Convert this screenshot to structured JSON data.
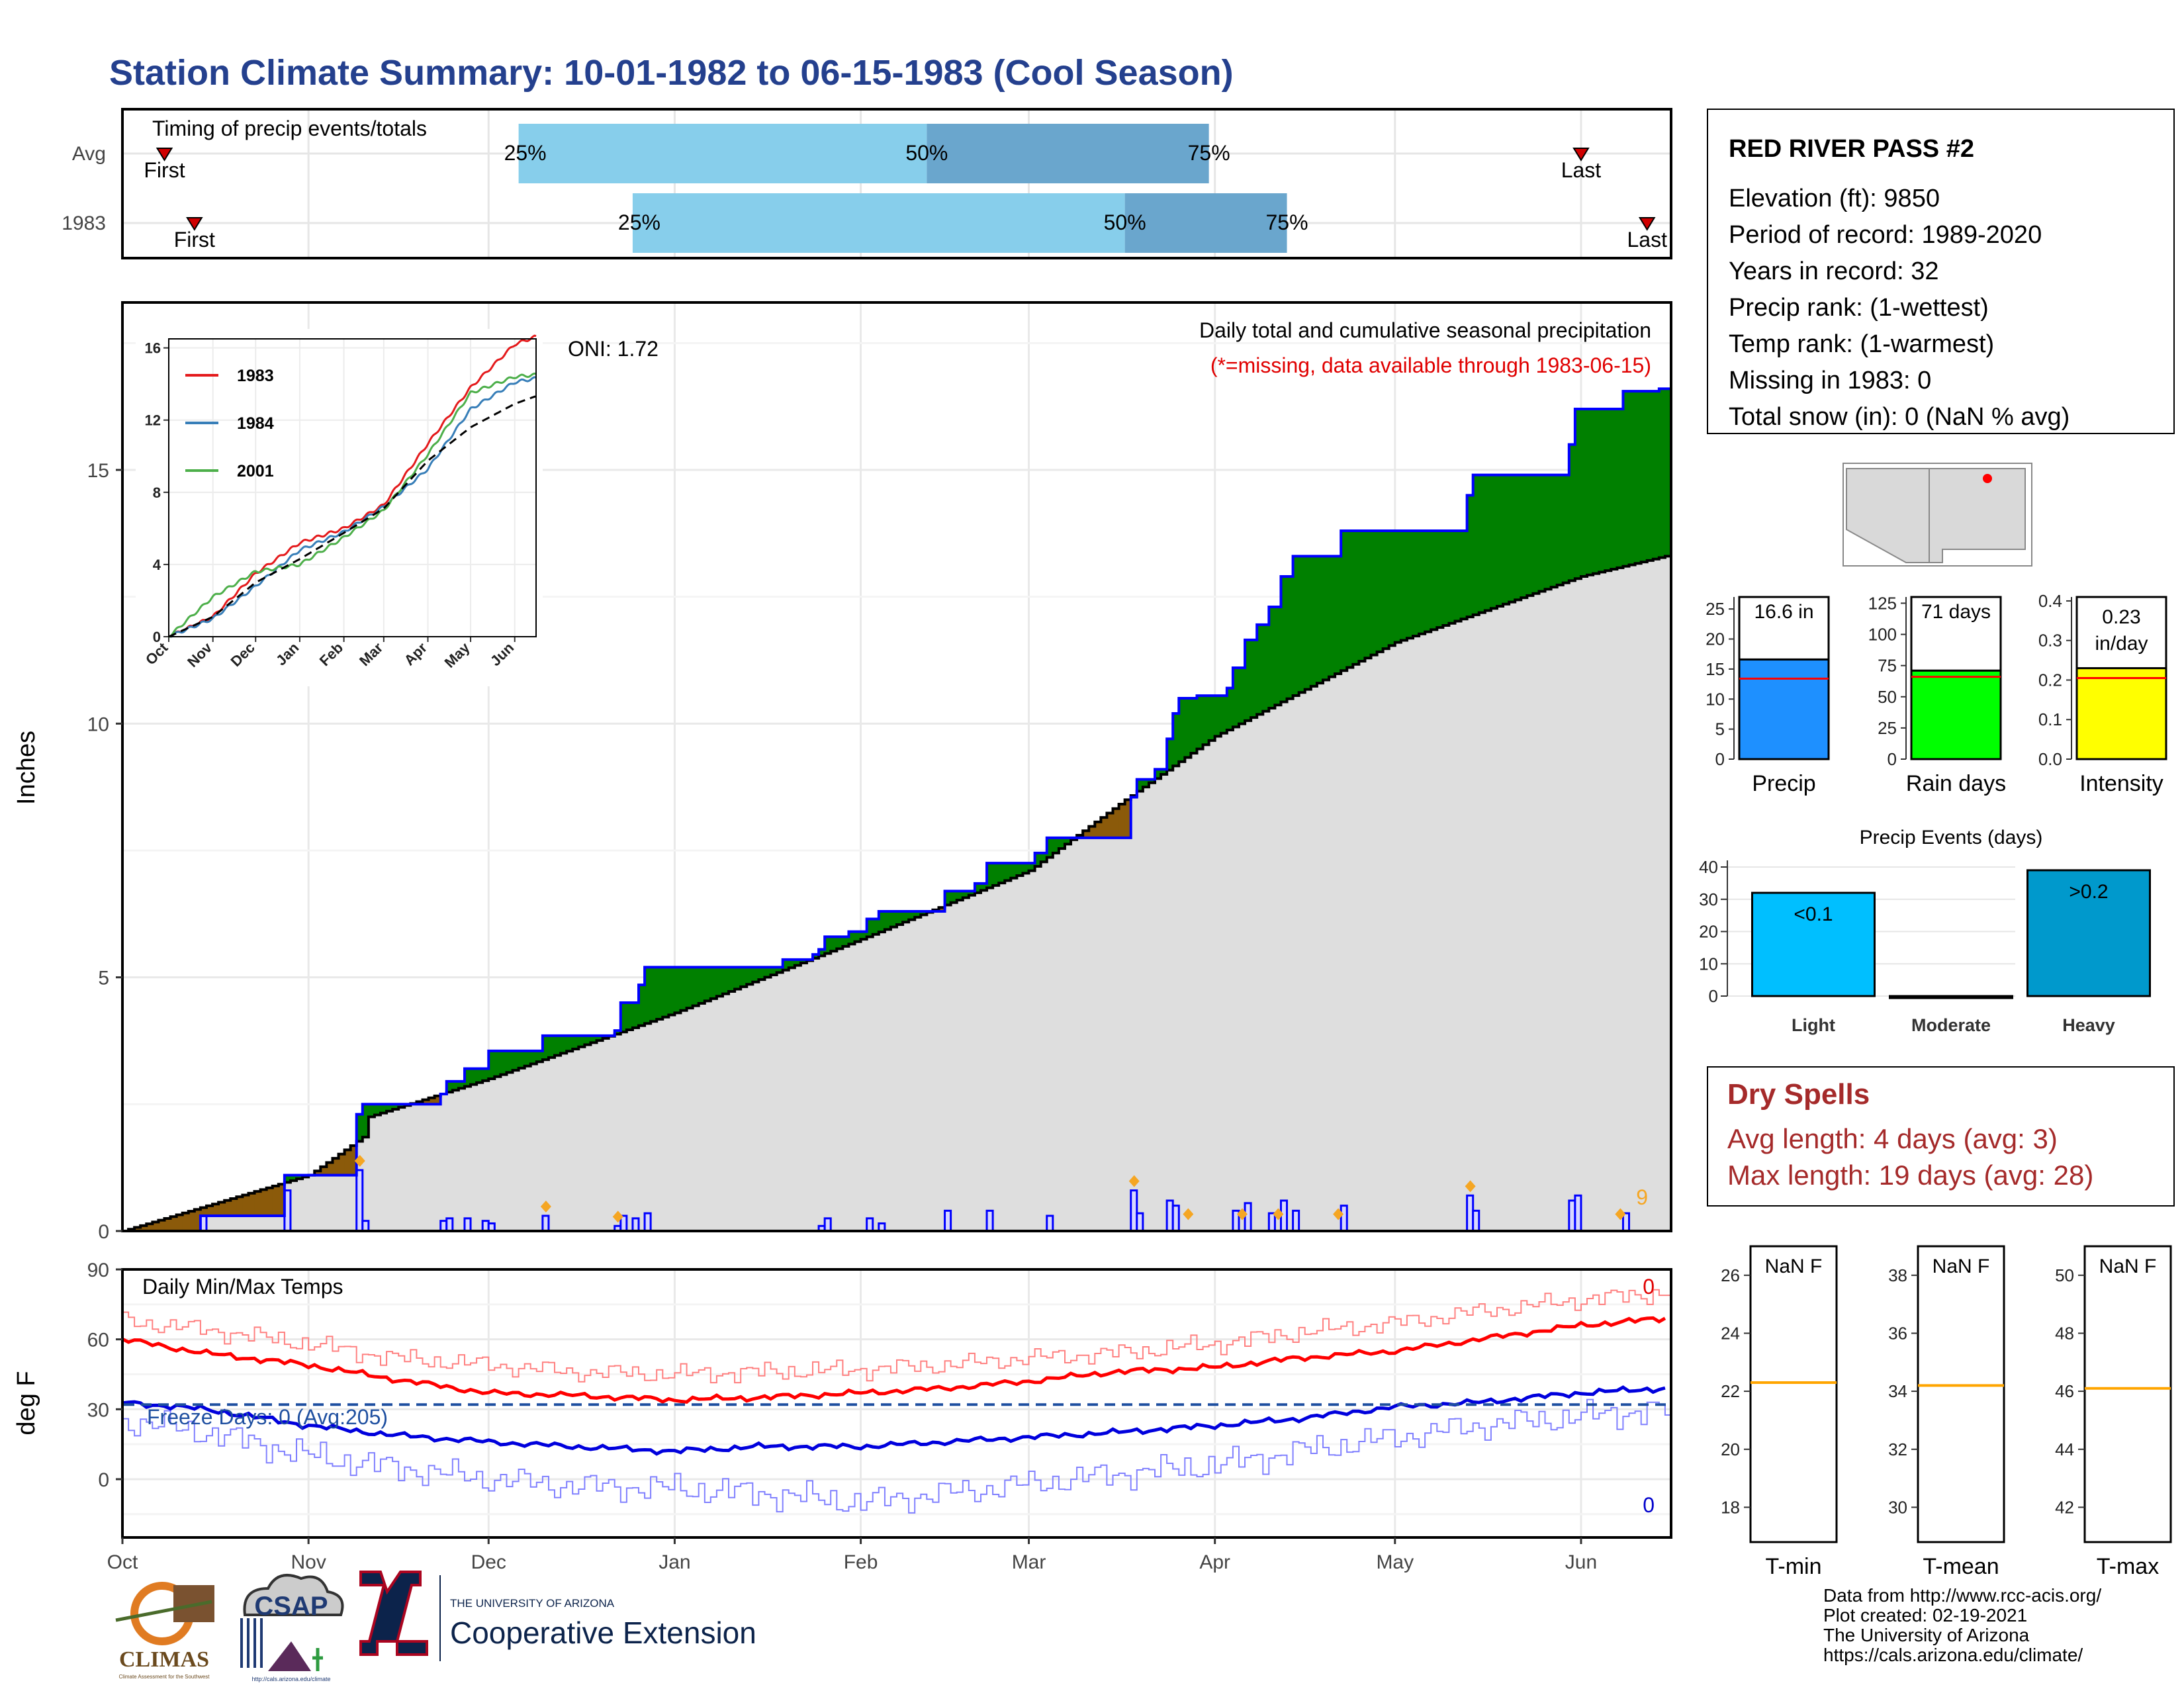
{
  "title": "Station Climate Summary: 10-01-1982 to 06-15-1983 (Cool Season)",
  "timing": {
    "label": "Timing of precip events/totals",
    "rows": [
      {
        "name": "Avg",
        "first_label": "First",
        "last_label": "Last",
        "first_date": "1982-10-08",
        "last_date": "1983-06-01",
        "p25": "1982-12-06",
        "p50": "1983-02-12",
        "p75": "1983-03-31",
        "p25_label": "25%",
        "p50_label": "50%",
        "p75_label": "75%"
      },
      {
        "name": "1983",
        "first_label": "First",
        "last_label": "Last",
        "first_date": "1982-10-13",
        "last_date": "1983-06-12",
        "p25": "1982-12-25",
        "p50": "1983-03-17",
        "p75": "1983-04-13",
        "p25_label": "25%",
        "p50_label": "50%",
        "p75_label": "75%"
      }
    ]
  },
  "main": {
    "ylabel": "Inches",
    "oni": "ONI: 1.72",
    "subtitle": "Daily total and cumulative seasonal precipitation",
    "missing_note": "(*=missing, data available through 1983-06-15)",
    "missing_count": "9",
    "yticks": [
      "0",
      "5",
      "10",
      "15"
    ]
  },
  "inset": {
    "yticks": [
      "0",
      "4",
      "8",
      "12",
      "16"
    ],
    "xticks": [
      "Oct",
      "Nov",
      "Dec",
      "Jan",
      "Feb",
      "Mar",
      "Apr",
      "May",
      "Jun"
    ],
    "legend": [
      {
        "name": "1983",
        "color": "#e41a1c"
      },
      {
        "name": "1984",
        "color": "#377eb8"
      },
      {
        "name": "2001",
        "color": "#4daf4a"
      }
    ]
  },
  "temps": {
    "label": "Daily Min/Max Temps",
    "ylabel": "deg F",
    "freeze": "Freeze Days: 0 (Avg:205)",
    "yticks": [
      "0",
      "30",
      "60",
      "90"
    ],
    "max_missing": "0",
    "min_missing": "0"
  },
  "months": [
    "Oct",
    "Nov",
    "Dec",
    "Jan",
    "Feb",
    "Mar",
    "Apr",
    "May",
    "Jun"
  ],
  "station": {
    "name": "RED RIVER PASS #2",
    "lines": [
      "Elevation (ft): 9850",
      "Period of record: 1989-2020",
      "Years in record: 32",
      "Precip rank:  (1-wettest)",
      "Temp rank:  (1-warmest)",
      "Missing in 1983: 0",
      "Total snow (in): 0 (NaN % avg)"
    ]
  },
  "bars": [
    {
      "label": "Precip",
      "value_label": "16.6 in",
      "value": 16.6,
      "avg": 13.4,
      "max": 27,
      "ticks": [
        "0",
        "5",
        "10",
        "15",
        "20",
        "25"
      ],
      "color": "#1e90ff"
    },
    {
      "label": "Rain days",
      "value_label": "71 days",
      "value": 71,
      "avg": 66,
      "max": 130,
      "ticks": [
        "0",
        "25",
        "50",
        "75",
        "100",
        "125"
      ],
      "color": "#00ff00"
    },
    {
      "label": "Intensity",
      "value_label": "0.23 in/day",
      "value": 0.23,
      "avg": 0.205,
      "max": 0.41,
      "ticks": [
        "0.0",
        "0.1",
        "0.2",
        "0.3",
        "0.4"
      ],
      "color": "#ffff00"
    }
  ],
  "events": {
    "title": "Precip Events (days)",
    "categories": [
      "Light",
      "Moderate",
      "Heavy"
    ],
    "values": [
      32,
      0,
      39
    ],
    "labels": [
      "<0.1",
      "",
      ">0.2"
    ],
    "colors": [
      "#00bfff",
      "#0099cc",
      "#0099cc"
    ],
    "ticks": [
      "0",
      "10",
      "20",
      "30",
      "40"
    ]
  },
  "dry": {
    "title": "Dry Spells",
    "avg": "Avg length: 4 days (avg: 3)",
    "max": "Max length: 19 days (avg: 28)"
  },
  "temp_boxes": [
    {
      "label": "T-min",
      "value": "NaN F",
      "avg": 22.3,
      "ticks": [
        "18",
        "20",
        "22",
        "24",
        "26"
      ]
    },
    {
      "label": "T-mean",
      "value": "NaN F",
      "avg": 34.2,
      "ticks": [
        "30",
        "32",
        "34",
        "36",
        "38"
      ]
    },
    {
      "label": "T-max",
      "value": "NaN F",
      "avg": 46.1,
      "ticks": [
        "42",
        "44",
        "46",
        "48",
        "50"
      ]
    }
  ],
  "credits": [
    "Data from http://www.rcc-acis.org/",
    "Plot created: 02-19-2021",
    "The University of Arizona",
    "https://cals.arizona.edu/climate/"
  ],
  "logos": {
    "climas": "CLIMAS",
    "climas_sub": "Climate Assessment for the Southwest",
    "csap": "CSAP",
    "csap_sub": "http://cals.arizona.edu/climate",
    "ua_top": "THE UNIVERSITY OF ARIZONA",
    "ua_main": "Cooperative Extension"
  },
  "chart_data": {
    "type": "area",
    "x_unit": "date",
    "x_range": [
      "1982-10-01",
      "1983-06-15"
    ],
    "ylim": [
      0,
      18.3
    ],
    "series": [
      {
        "name": "1983",
        "points": [
          [
            "1982-10-01",
            0
          ],
          [
            "1982-10-13",
            0
          ],
          [
            "1982-10-14",
            0.3
          ],
          [
            "1982-10-27",
            0.3
          ],
          [
            "1982-10-28",
            1.1
          ],
          [
            "1982-11-08",
            1.1
          ],
          [
            "1982-11-09",
            2.3
          ],
          [
            "1982-11-10",
            2.5
          ],
          [
            "1982-11-23",
            2.7
          ],
          [
            "1982-11-24",
            2.95
          ],
          [
            "1982-11-27",
            3.2
          ],
          [
            "1982-12-01",
            3.55
          ],
          [
            "1982-12-09",
            3.55
          ],
          [
            "1982-12-10",
            3.85
          ],
          [
            "1982-12-22",
            3.95
          ],
          [
            "1982-12-23",
            4.5
          ],
          [
            "1982-12-26",
            4.85
          ],
          [
            "1982-12-27",
            5.2
          ],
          [
            "1983-01-16",
            5.2
          ],
          [
            "1983-01-19",
            5.35
          ],
          [
            "1983-01-24",
            5.45
          ],
          [
            "1983-01-25",
            5.55
          ],
          [
            "1983-01-26",
            5.8
          ],
          [
            "1983-01-30",
            5.9
          ],
          [
            "1983-02-02",
            6.15
          ],
          [
            "1983-02-04",
            6.3
          ],
          [
            "1983-02-14",
            6.3
          ],
          [
            "1983-02-15",
            6.7
          ],
          [
            "1983-02-20",
            6.85
          ],
          [
            "1983-02-22",
            7.25
          ],
          [
            "1983-03-01",
            7.25
          ],
          [
            "1983-03-02",
            7.45
          ],
          [
            "1983-03-04",
            7.75
          ],
          [
            "1983-03-17",
            7.75
          ],
          [
            "1983-03-18",
            8.55
          ],
          [
            "1983-03-19",
            8.9
          ],
          [
            "1983-03-22",
            9.1
          ],
          [
            "1983-03-24",
            9.7
          ],
          [
            "1983-03-25",
            10.2
          ],
          [
            "1983-03-26",
            10.5
          ],
          [
            "1983-03-29",
            10.55
          ],
          [
            "1983-04-03",
            10.7
          ],
          [
            "1983-04-04",
            11.1
          ],
          [
            "1983-04-06",
            11.65
          ],
          [
            "1983-04-08",
            11.95
          ],
          [
            "1983-04-10",
            12.3
          ],
          [
            "1983-04-12",
            12.9
          ],
          [
            "1983-04-14",
            13.3
          ],
          [
            "1983-04-21",
            13.3
          ],
          [
            "1983-04-22",
            13.8
          ],
          [
            "1983-05-12",
            13.8
          ],
          [
            "1983-05-13",
            14.5
          ],
          [
            "1983-05-14",
            14.9
          ],
          [
            "1983-05-29",
            14.9
          ],
          [
            "1983-05-30",
            15.5
          ],
          [
            "1983-05-31",
            16.2
          ],
          [
            "1983-06-07",
            16.2
          ],
          [
            "1983-06-08",
            16.55
          ],
          [
            "1983-06-14",
            16.6
          ],
          [
            "1983-06-15",
            16.6
          ]
        ]
      },
      {
        "name": "Avg",
        "points": [
          [
            "1982-10-01",
            0
          ],
          [
            "1982-11-01",
            1.1
          ],
          [
            "1982-11-10",
            1.85
          ],
          [
            "1982-11-11",
            2.25
          ],
          [
            "1982-12-01",
            3.0
          ],
          [
            "1983-01-01",
            4.3
          ],
          [
            "1983-02-01",
            5.75
          ],
          [
            "1983-03-01",
            7.1
          ],
          [
            "1983-03-17",
            8.5
          ],
          [
            "1983-04-01",
            9.75
          ],
          [
            "1983-05-01",
            11.6
          ],
          [
            "1983-06-01",
            12.9
          ],
          [
            "1983-06-15",
            13.3
          ]
        ]
      }
    ],
    "daily_precip": [
      [
        "1982-10-14",
        0.3
      ],
      [
        "1982-10-28",
        0.8
      ],
      [
        "1982-11-09",
        1.2
      ],
      [
        "1982-11-10",
        0.2
      ],
      [
        "1982-11-23",
        0.2
      ],
      [
        "1982-11-24",
        0.25
      ],
      [
        "1982-11-27",
        0.25
      ],
      [
        "1982-11-30",
        0.2
      ],
      [
        "1982-12-01",
        0.15
      ],
      [
        "1982-12-10",
        0.3
      ],
      [
        "1982-12-22",
        0.1
      ],
      [
        "1982-12-23",
        0.3
      ],
      [
        "1982-12-25",
        0.25
      ],
      [
        "1982-12-27",
        0.35
      ],
      [
        "1983-01-25",
        0.1
      ],
      [
        "1983-01-26",
        0.25
      ],
      [
        "1983-02-02",
        0.25
      ],
      [
        "1983-02-04",
        0.15
      ],
      [
        "1983-02-15",
        0.4
      ],
      [
        "1983-02-22",
        0.4
      ],
      [
        "1983-03-04",
        0.3
      ],
      [
        "1983-03-18",
        0.8
      ],
      [
        "1983-03-19",
        0.35
      ],
      [
        "1983-03-24",
        0.6
      ],
      [
        "1983-03-25",
        0.5
      ],
      [
        "1983-04-04",
        0.4
      ],
      [
        "1983-04-06",
        0.55
      ],
      [
        "1983-04-10",
        0.35
      ],
      [
        "1983-04-12",
        0.6
      ],
      [
        "1983-04-14",
        0.4
      ],
      [
        "1983-04-22",
        0.5
      ],
      [
        "1983-05-13",
        0.7
      ],
      [
        "1983-05-14",
        0.4
      ],
      [
        "1983-05-30",
        0.6
      ],
      [
        "1983-05-31",
        0.7
      ],
      [
        "1983-06-08",
        0.35
      ]
    ],
    "inset_series": [
      {
        "name": "1983",
        "color": "#e41a1c",
        "points": [
          [
            "1982-10-01",
            0
          ],
          [
            "1982-11-01",
            1.1
          ],
          [
            "1982-12-01",
            3.5
          ],
          [
            "1983-01-01",
            5.2
          ],
          [
            "1983-02-01",
            6.0
          ],
          [
            "1983-03-01",
            7.3
          ],
          [
            "1983-04-01",
            10.7
          ],
          [
            "1983-05-01",
            13.8
          ],
          [
            "1983-06-01",
            16.2
          ],
          [
            "1983-06-15",
            16.6
          ]
        ]
      },
      {
        "name": "1984",
        "color": "#377eb8",
        "points": [
          [
            "1982-10-01",
            0
          ],
          [
            "1982-11-01",
            1.0
          ],
          [
            "1982-12-01",
            2.8
          ],
          [
            "1983-01-01",
            4.8
          ],
          [
            "1983-02-01",
            5.8
          ],
          [
            "1983-03-01",
            7.2
          ],
          [
            "1983-04-01",
            9.3
          ],
          [
            "1983-05-01",
            12.6
          ],
          [
            "1983-06-01",
            14.1
          ],
          [
            "1983-06-15",
            14.3
          ]
        ]
      },
      {
        "name": "2001",
        "color": "#4daf4a",
        "points": [
          [
            "1982-10-01",
            0
          ],
          [
            "1982-11-01",
            2.2
          ],
          [
            "1982-12-01",
            3.6
          ],
          [
            "1983-01-01",
            4.0
          ],
          [
            "1983-02-01",
            5.5
          ],
          [
            "1983-03-01",
            7.0
          ],
          [
            "1983-04-01",
            10.1
          ],
          [
            "1983-05-01",
            13.5
          ],
          [
            "1983-06-01",
            14.4
          ],
          [
            "1983-06-15",
            14.5
          ]
        ]
      },
      {
        "name": "Avg",
        "color": "#000000",
        "points": [
          [
            "1982-10-01",
            0
          ],
          [
            "1982-11-01",
            1.1
          ],
          [
            "1982-12-01",
            3.0
          ],
          [
            "1983-01-01",
            4.3
          ],
          [
            "1983-02-01",
            5.75
          ],
          [
            "1983-03-01",
            7.1
          ],
          [
            "1983-04-01",
            9.75
          ],
          [
            "1983-05-01",
            11.6
          ],
          [
            "1983-06-01",
            12.9
          ],
          [
            "1983-06-15",
            13.3
          ]
        ]
      }
    ],
    "temps": {
      "max_1983": [
        [
          "1982-10-01",
          60
        ],
        [
          "1982-10-15",
          54
        ],
        [
          "1982-11-01",
          49
        ],
        [
          "1982-11-15",
          43
        ],
        [
          "1982-12-01",
          37
        ],
        [
          "1982-12-15",
          36
        ],
        [
          "1983-01-01",
          34
        ],
        [
          "1983-01-15",
          35
        ],
        [
          "1983-02-01",
          37
        ],
        [
          "1983-02-15",
          39
        ],
        [
          "1983-03-01",
          42
        ],
        [
          "1983-03-15",
          46
        ],
        [
          "1983-04-01",
          48
        ],
        [
          "1983-04-15",
          52
        ],
        [
          "1983-05-01",
          55
        ],
        [
          "1983-05-15",
          60
        ],
        [
          "1983-06-01",
          66
        ],
        [
          "1983-06-15",
          69
        ]
      ],
      "min_1983": [
        [
          "1982-10-01",
          33
        ],
        [
          "1982-10-15",
          30
        ],
        [
          "1982-11-01",
          23
        ],
        [
          "1982-11-15",
          19
        ],
        [
          "1982-12-01",
          16
        ],
        [
          "1982-12-15",
          14
        ],
        [
          "1983-01-01",
          12
        ],
        [
          "1983-01-15",
          14
        ],
        [
          "1983-02-01",
          14
        ],
        [
          "1983-02-15",
          16
        ],
        [
          "1983-03-01",
          18
        ],
        [
          "1983-03-15",
          20
        ],
        [
          "1983-04-01",
          23
        ],
        [
          "1983-04-15",
          26
        ],
        [
          "1983-05-01",
          31
        ],
        [
          "1983-05-15",
          33
        ],
        [
          "1983-06-01",
          37
        ],
        [
          "1983-06-15",
          39
        ]
      ],
      "max_avg": [
        [
          "1982-10-01",
          68
        ],
        [
          "1982-10-15",
          64
        ],
        [
          "1982-11-01",
          58
        ],
        [
          "1982-11-15",
          52
        ],
        [
          "1982-12-01",
          49
        ],
        [
          "1982-12-15",
          46
        ],
        [
          "1983-01-01",
          45
        ],
        [
          "1983-01-15",
          46
        ],
        [
          "1983-02-01",
          47
        ],
        [
          "1983-02-15",
          49
        ],
        [
          "1983-03-01",
          52
        ],
        [
          "1983-03-15",
          54
        ],
        [
          "1983-04-01",
          58
        ],
        [
          "1983-04-15",
          63
        ],
        [
          "1983-05-01",
          67
        ],
        [
          "1983-05-15",
          72
        ],
        [
          "1983-06-01",
          77
        ],
        [
          "1983-06-15",
          80
        ]
      ],
      "min_avg": [
        [
          "1982-10-01",
          25
        ],
        [
          "1982-10-15",
          20
        ],
        [
          "1982-11-01",
          10
        ],
        [
          "1982-11-15",
          5
        ],
        [
          "1982-12-01",
          0
        ],
        [
          "1982-12-15",
          -3
        ],
        [
          "1983-01-01",
          -4
        ],
        [
          "1983-01-15",
          -6
        ],
        [
          "1983-02-01",
          -10
        ],
        [
          "1983-02-15",
          -6
        ],
        [
          "1983-03-01",
          -2
        ],
        [
          "1983-03-15",
          2
        ],
        [
          "1983-04-01",
          6
        ],
        [
          "1983-04-15",
          12
        ],
        [
          "1983-05-01",
          18
        ],
        [
          "1983-05-15",
          23
        ],
        [
          "1983-06-01",
          27
        ],
        [
          "1983-06-15",
          30
        ]
      ],
      "freeze_line": 32,
      "ylim": [
        -25,
        90
      ]
    }
  }
}
